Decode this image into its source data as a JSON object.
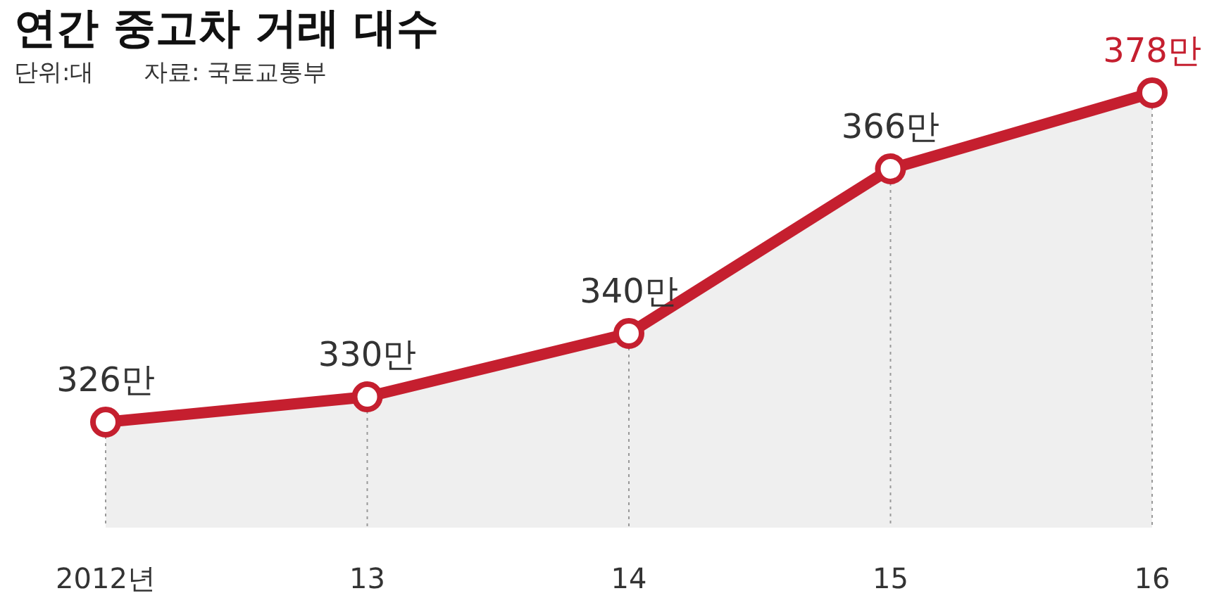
{
  "chart_data": {
    "type": "area",
    "title": "연간 중고차 거래 대수",
    "subtitle": "단위:대",
    "annotations": [
      "자료: 국토교통부"
    ],
    "categories": [
      "2012년",
      "13",
      "14",
      "15",
      "16"
    ],
    "series": [
      {
        "color": "#c51f2f",
        "values": [
          326,
          330,
          340,
          366,
          378
        ],
        "value_labels": [
          "326만",
          "330만",
          "340만",
          "366만",
          "378만"
        ]
      }
    ],
    "tick_labels": "x",
    "marker": "circle"
  }
}
